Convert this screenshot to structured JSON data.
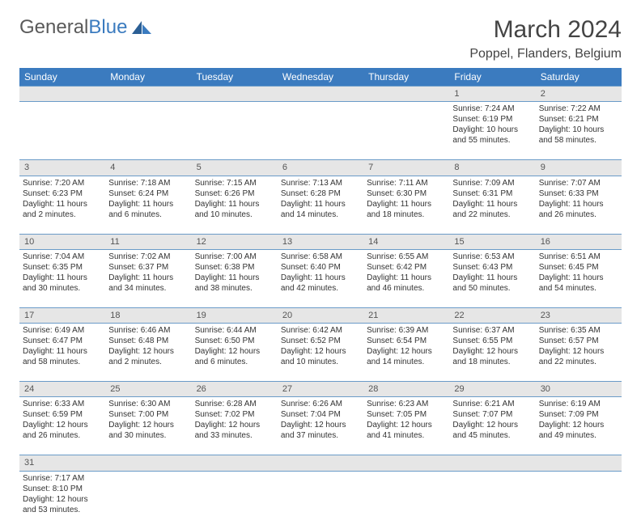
{
  "logo": {
    "text1": "General",
    "text2": "Blue"
  },
  "title": "March 2024",
  "location": "Poppel, Flanders, Belgium",
  "colors": {
    "header_bg": "#3b7bbf",
    "header_text": "#ffffff",
    "daynum_bg": "#e6e6e6",
    "border": "#6a9bc8",
    "text": "#333333"
  },
  "day_headers": [
    "Sunday",
    "Monday",
    "Tuesday",
    "Wednesday",
    "Thursday",
    "Friday",
    "Saturday"
  ],
  "weeks": [
    [
      null,
      null,
      null,
      null,
      null,
      {
        "n": "1",
        "sr": "7:24 AM",
        "ss": "6:19 PM",
        "dl": "10 hours and 55 minutes."
      },
      {
        "n": "2",
        "sr": "7:22 AM",
        "ss": "6:21 PM",
        "dl": "10 hours and 58 minutes."
      }
    ],
    [
      {
        "n": "3",
        "sr": "7:20 AM",
        "ss": "6:23 PM",
        "dl": "11 hours and 2 minutes."
      },
      {
        "n": "4",
        "sr": "7:18 AM",
        "ss": "6:24 PM",
        "dl": "11 hours and 6 minutes."
      },
      {
        "n": "5",
        "sr": "7:15 AM",
        "ss": "6:26 PM",
        "dl": "11 hours and 10 minutes."
      },
      {
        "n": "6",
        "sr": "7:13 AM",
        "ss": "6:28 PM",
        "dl": "11 hours and 14 minutes."
      },
      {
        "n": "7",
        "sr": "7:11 AM",
        "ss": "6:30 PM",
        "dl": "11 hours and 18 minutes."
      },
      {
        "n": "8",
        "sr": "7:09 AM",
        "ss": "6:31 PM",
        "dl": "11 hours and 22 minutes."
      },
      {
        "n": "9",
        "sr": "7:07 AM",
        "ss": "6:33 PM",
        "dl": "11 hours and 26 minutes."
      }
    ],
    [
      {
        "n": "10",
        "sr": "7:04 AM",
        "ss": "6:35 PM",
        "dl": "11 hours and 30 minutes."
      },
      {
        "n": "11",
        "sr": "7:02 AM",
        "ss": "6:37 PM",
        "dl": "11 hours and 34 minutes."
      },
      {
        "n": "12",
        "sr": "7:00 AM",
        "ss": "6:38 PM",
        "dl": "11 hours and 38 minutes."
      },
      {
        "n": "13",
        "sr": "6:58 AM",
        "ss": "6:40 PM",
        "dl": "11 hours and 42 minutes."
      },
      {
        "n": "14",
        "sr": "6:55 AM",
        "ss": "6:42 PM",
        "dl": "11 hours and 46 minutes."
      },
      {
        "n": "15",
        "sr": "6:53 AM",
        "ss": "6:43 PM",
        "dl": "11 hours and 50 minutes."
      },
      {
        "n": "16",
        "sr": "6:51 AM",
        "ss": "6:45 PM",
        "dl": "11 hours and 54 minutes."
      }
    ],
    [
      {
        "n": "17",
        "sr": "6:49 AM",
        "ss": "6:47 PM",
        "dl": "11 hours and 58 minutes."
      },
      {
        "n": "18",
        "sr": "6:46 AM",
        "ss": "6:48 PM",
        "dl": "12 hours and 2 minutes."
      },
      {
        "n": "19",
        "sr": "6:44 AM",
        "ss": "6:50 PM",
        "dl": "12 hours and 6 minutes."
      },
      {
        "n": "20",
        "sr": "6:42 AM",
        "ss": "6:52 PM",
        "dl": "12 hours and 10 minutes."
      },
      {
        "n": "21",
        "sr": "6:39 AM",
        "ss": "6:54 PM",
        "dl": "12 hours and 14 minutes."
      },
      {
        "n": "22",
        "sr": "6:37 AM",
        "ss": "6:55 PM",
        "dl": "12 hours and 18 minutes."
      },
      {
        "n": "23",
        "sr": "6:35 AM",
        "ss": "6:57 PM",
        "dl": "12 hours and 22 minutes."
      }
    ],
    [
      {
        "n": "24",
        "sr": "6:33 AM",
        "ss": "6:59 PM",
        "dl": "12 hours and 26 minutes."
      },
      {
        "n": "25",
        "sr": "6:30 AM",
        "ss": "7:00 PM",
        "dl": "12 hours and 30 minutes."
      },
      {
        "n": "26",
        "sr": "6:28 AM",
        "ss": "7:02 PM",
        "dl": "12 hours and 33 minutes."
      },
      {
        "n": "27",
        "sr": "6:26 AM",
        "ss": "7:04 PM",
        "dl": "12 hours and 37 minutes."
      },
      {
        "n": "28",
        "sr": "6:23 AM",
        "ss": "7:05 PM",
        "dl": "12 hours and 41 minutes."
      },
      {
        "n": "29",
        "sr": "6:21 AM",
        "ss": "7:07 PM",
        "dl": "12 hours and 45 minutes."
      },
      {
        "n": "30",
        "sr": "6:19 AM",
        "ss": "7:09 PM",
        "dl": "12 hours and 49 minutes."
      }
    ],
    [
      {
        "n": "31",
        "sr": "7:17 AM",
        "ss": "8:10 PM",
        "dl": "12 hours and 53 minutes."
      },
      null,
      null,
      null,
      null,
      null,
      null
    ]
  ],
  "labels": {
    "sunrise": "Sunrise: ",
    "sunset": "Sunset: ",
    "daylight": "Daylight: "
  }
}
